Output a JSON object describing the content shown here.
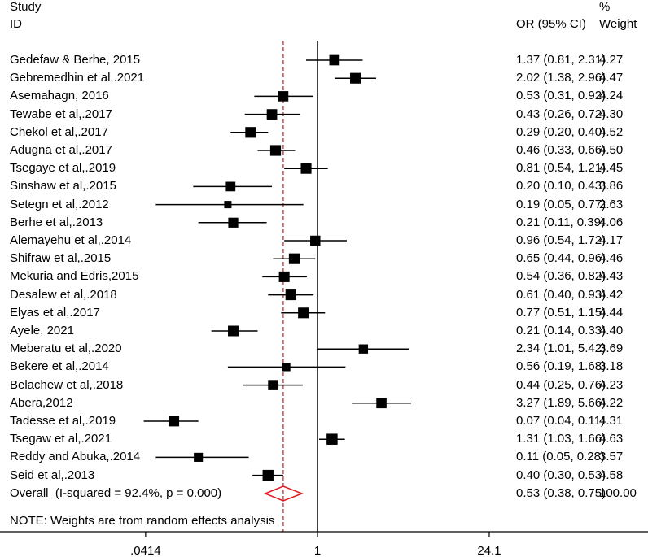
{
  "chart_data": {
    "type": "forest",
    "header": {
      "col1_line1": "Study",
      "col1_line2": "ID",
      "col2": "OR (95% CI)",
      "col3_line1": "%",
      "col3_line2": "Weight"
    },
    "x_scale": "log",
    "null_value": 1,
    "overall_line_value": 0.53,
    "x_ticks": [
      {
        "value": 0.0414,
        "label": ".0414"
      },
      {
        "value": 1,
        "label": "1"
      },
      {
        "value": 24.1,
        "label": "24.1"
      }
    ],
    "studies": [
      {
        "study": "Gedefaw & Berhe, 2015",
        "or": 1.37,
        "lo": 0.81,
        "hi": 2.31,
        "ci_text": "1.37 (0.81, 2.31)",
        "weight": "4.27"
      },
      {
        "study": "Gebremedhin et al,.2021",
        "or": 2.02,
        "lo": 1.38,
        "hi": 2.96,
        "ci_text": "2.02 (1.38, 2.96)",
        "weight": "4.47"
      },
      {
        "study": "Asemahagn, 2016",
        "or": 0.53,
        "lo": 0.31,
        "hi": 0.92,
        "ci_text": "0.53 (0.31, 0.92)",
        "weight": "4.24"
      },
      {
        "study": "Tewabe et al,.2017",
        "or": 0.43,
        "lo": 0.26,
        "hi": 0.72,
        "ci_text": "0.43 (0.26, 0.72)",
        "weight": "4.30"
      },
      {
        "study": "Chekol et al,.2017",
        "or": 0.29,
        "lo": 0.2,
        "hi": 0.4,
        "ci_text": "0.29 (0.20, 0.40)",
        "weight": "4.52"
      },
      {
        "study": "Adugna et al,.2017",
        "or": 0.46,
        "lo": 0.33,
        "hi": 0.66,
        "ci_text": "0.46 (0.33, 0.66)",
        "weight": "4.50"
      },
      {
        "study": "Tsegaye et al,.2019",
        "or": 0.81,
        "lo": 0.54,
        "hi": 1.21,
        "ci_text": "0.81 (0.54, 1.21)",
        "weight": "4.45"
      },
      {
        "study": "Sinshaw et al,.2015",
        "or": 0.2,
        "lo": 0.1,
        "hi": 0.43,
        "ci_text": "0.20 (0.10, 0.43)",
        "weight": "3.86"
      },
      {
        "study": "Setegn et al,.2012",
        "or": 0.19,
        "lo": 0.05,
        "hi": 0.77,
        "ci_text": "0.19 (0.05, 0.77)",
        "weight": "2.63"
      },
      {
        "study": "Berhe et al,.2013",
        "or": 0.21,
        "lo": 0.11,
        "hi": 0.39,
        "ci_text": "0.21 (0.11, 0.39)",
        "weight": "4.06"
      },
      {
        "study": "Alemayehu et al,.2014",
        "or": 0.96,
        "lo": 0.54,
        "hi": 1.72,
        "ci_text": "0.96 (0.54, 1.72)",
        "weight": "4.17"
      },
      {
        "study": "Shifraw et al,.2015",
        "or": 0.65,
        "lo": 0.44,
        "hi": 0.96,
        "ci_text": "0.65 (0.44, 0.96)",
        "weight": "4.46"
      },
      {
        "study": "Mekuria and Edris,2015",
        "or": 0.54,
        "lo": 0.36,
        "hi": 0.82,
        "ci_text": "0.54 (0.36, 0.82)",
        "weight": "4.43"
      },
      {
        "study": "Desalew et al,.2018",
        "or": 0.61,
        "lo": 0.4,
        "hi": 0.93,
        "ci_text": "0.61 (0.40, 0.93)",
        "weight": "4.42"
      },
      {
        "study": "Elyas et al,.2017",
        "or": 0.77,
        "lo": 0.51,
        "hi": 1.15,
        "ci_text": "0.77 (0.51, 1.15)",
        "weight": "4.44"
      },
      {
        "study": "Ayele, 2021",
        "or": 0.21,
        "lo": 0.14,
        "hi": 0.33,
        "ci_text": "0.21 (0.14, 0.33)",
        "weight": "4.40"
      },
      {
        "study": "Meberatu et al,.2020",
        "or": 2.34,
        "lo": 1.01,
        "hi": 5.42,
        "ci_text": "2.34 (1.01, 5.42)",
        "weight": "3.69"
      },
      {
        "study": "Bekere et al,.2014",
        "or": 0.56,
        "lo": 0.19,
        "hi": 1.68,
        "ci_text": "0.56 (0.19, 1.68)",
        "weight": "3.18"
      },
      {
        "study": "Belachew et al,.2018",
        "or": 0.44,
        "lo": 0.25,
        "hi": 0.76,
        "ci_text": "0.44 (0.25, 0.76)",
        "weight": "4.23"
      },
      {
        "study": "Abera,2012",
        "or": 3.27,
        "lo": 1.89,
        "hi": 5.66,
        "ci_text": "3.27 (1.89, 5.66)",
        "weight": "4.22"
      },
      {
        "study": "Tadesse et al,.2019",
        "or": 0.07,
        "lo": 0.04,
        "hi": 0.11,
        "ci_text": "0.07 (0.04, 0.11)",
        "weight": "4.31"
      },
      {
        "study": "Tsegaw et al,.2021",
        "or": 1.31,
        "lo": 1.03,
        "hi": 1.66,
        "ci_text": "1.31 (1.03, 1.66)",
        "weight": "4.63"
      },
      {
        "study": "Reddy and Abuka,.2014",
        "or": 0.11,
        "lo": 0.05,
        "hi": 0.28,
        "ci_text": "0.11 (0.05, 0.28)",
        "weight": "3.57"
      },
      {
        "study": "Seid et al,.2013",
        "or": 0.4,
        "lo": 0.3,
        "hi": 0.53,
        "ci_text": "0.40 (0.30, 0.53)",
        "weight": "4.58"
      }
    ],
    "overall": {
      "label": "Overall  (I-squared = 92.4%, p = 0.000)",
      "or": 0.53,
      "lo": 0.38,
      "hi": 0.75,
      "ci_text": "0.53 (0.38, 0.75)",
      "weight": "100.00"
    },
    "note": "NOTE: Weights are from random effects analysis",
    "colors": {
      "marker": "#000000",
      "diamond": "#e0191d",
      "overall_line": "#b22222",
      "axis": "#000000"
    }
  }
}
